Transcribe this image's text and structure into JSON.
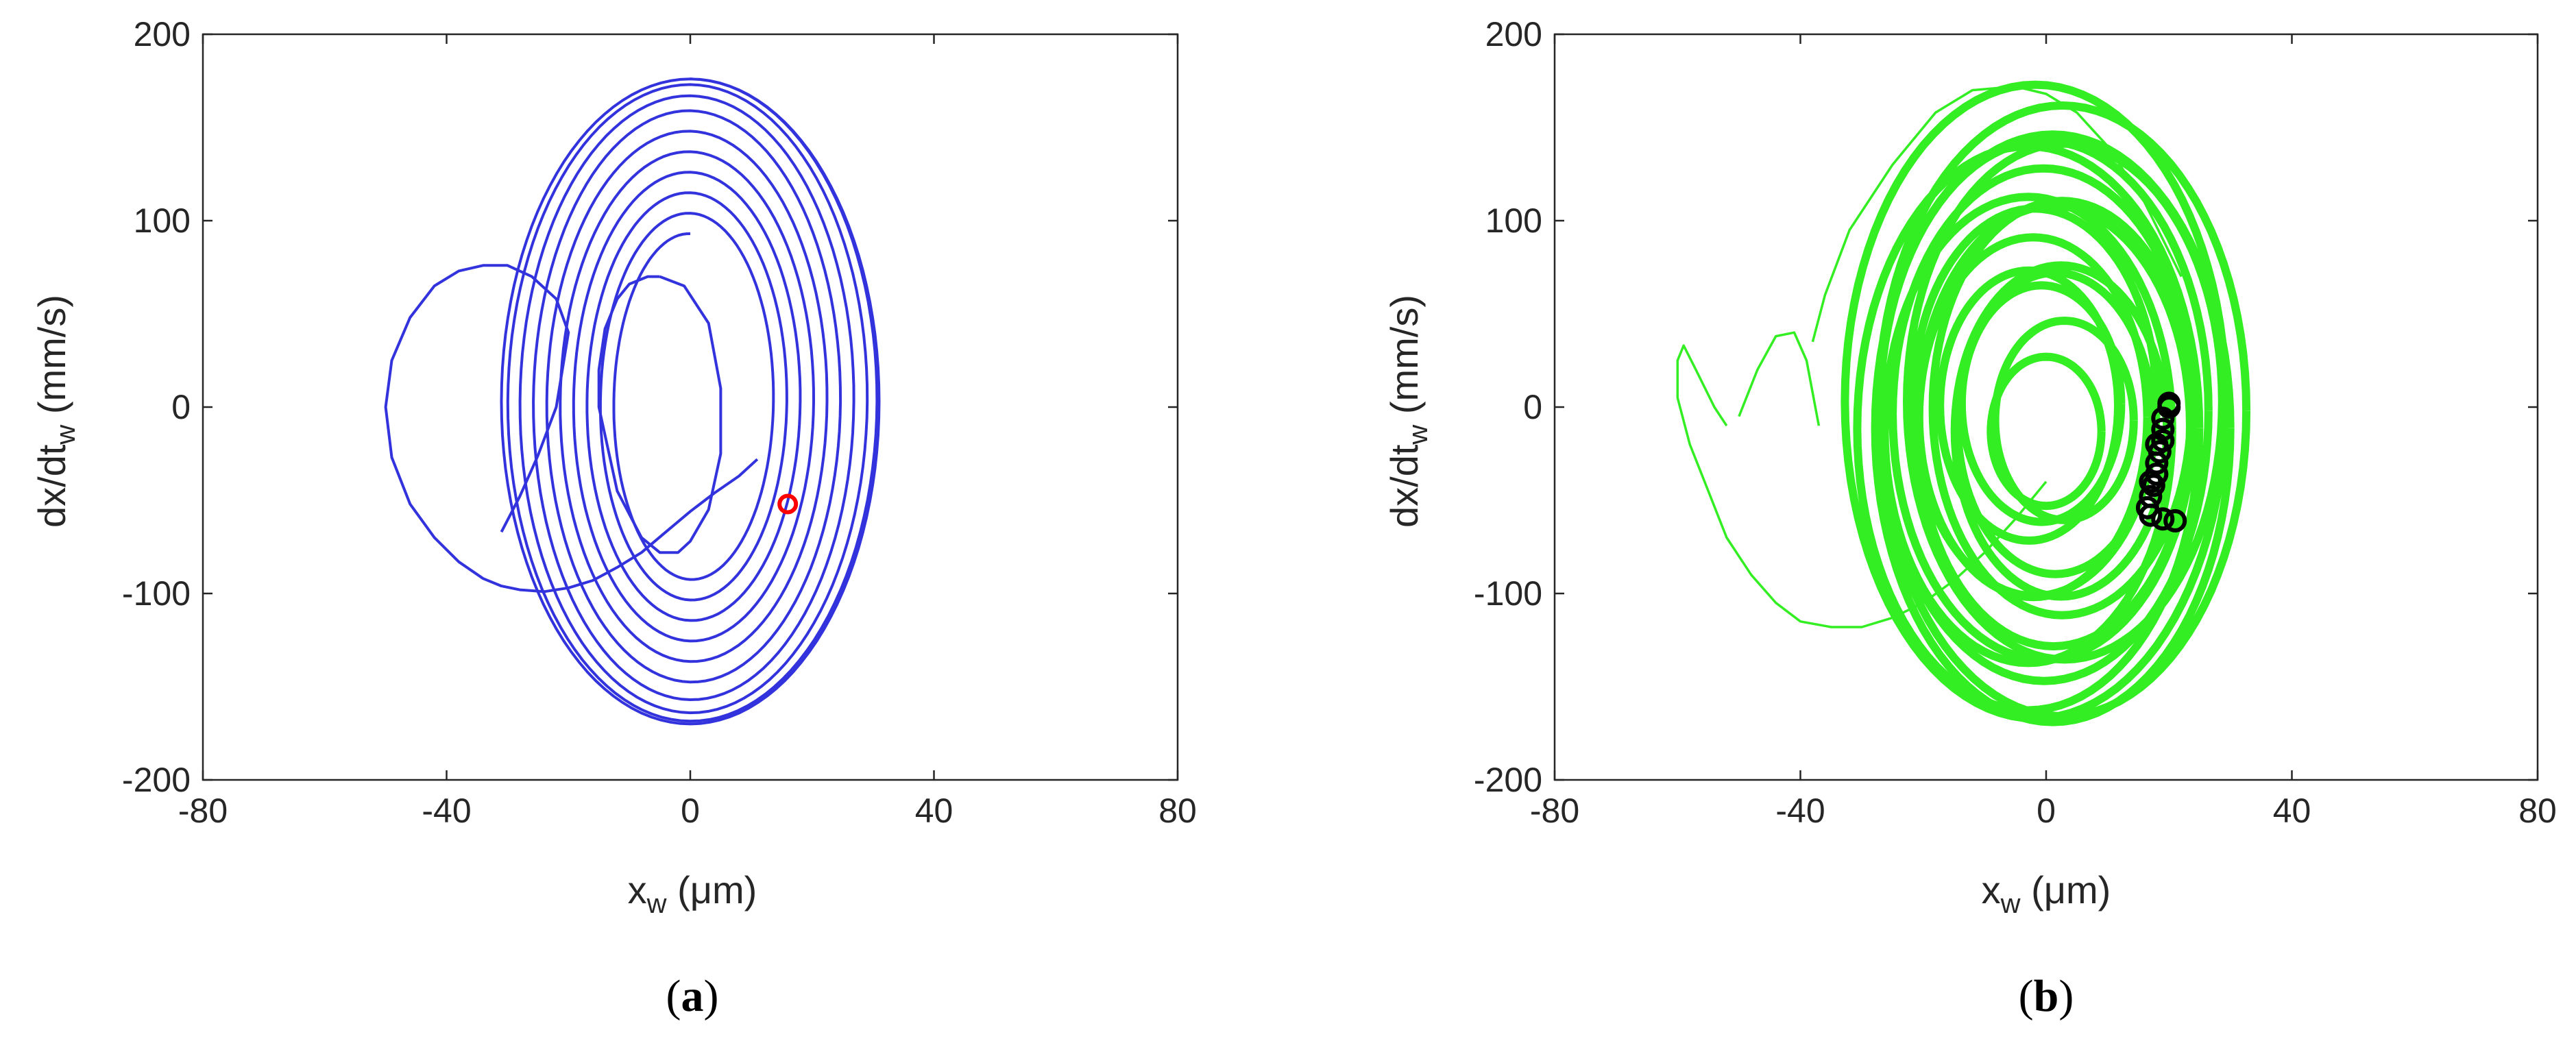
{
  "chart_data": [
    {
      "panel": "(a)",
      "type": "line",
      "title": "",
      "xlabel": {
        "base": "x",
        "sub": "w",
        "unit": " (μm)"
      },
      "ylabel": {
        "base": "dx/dt",
        "sub": "w",
        "unit": " (mm/s)"
      },
      "xlim": [
        -80,
        80
      ],
      "ylim": [
        -200,
        200
      ],
      "xticks": [
        -80,
        -40,
        0,
        40,
        80
      ],
      "yticks": [
        -200,
        -100,
        0,
        100,
        200
      ],
      "grid": false,
      "legend": "none",
      "colors": {
        "trajectory": "#3333dd",
        "marker": "#ff0000"
      },
      "series": [
        {
          "kind": "transient",
          "x": [
            -31,
            -28,
            -25,
            -22,
            -20,
            -22,
            -26,
            -30,
            -34,
            -38,
            -42,
            -46,
            -49,
            -50,
            -49,
            -46,
            -42,
            -38,
            -34,
            -31,
            -28,
            -24,
            -20,
            -16,
            -12,
            -8,
            -4,
            0,
            4,
            8,
            11
          ],
          "y": [
            -67,
            -48,
            -26,
            0,
            40,
            58,
            70,
            76,
            76,
            73,
            65,
            48,
            25,
            0,
            -27,
            -52,
            -70,
            -83,
            -92,
            -96,
            -98,
            -99,
            -97,
            -93,
            -86,
            -78,
            -67,
            -56,
            -46,
            -37,
            -28
          ]
        },
        {
          "kind": "inner-loop",
          "x": [
            -5,
            -1,
            3,
            5,
            5,
            3,
            0,
            -2,
            -5,
            -8,
            -12,
            -15,
            -15,
            -14,
            -12,
            -10,
            -7,
            -5
          ],
          "y": [
            70,
            65,
            45,
            10,
            -25,
            -55,
            -72,
            -78,
            -78,
            -70,
            -45,
            0,
            20,
            42,
            58,
            66,
            70,
            70
          ]
        },
        {
          "kind": "nested-spiral",
          "center": [
            0,
            3
          ],
          "loops": [
            {
              "rx": 12,
              "ry": 90
            },
            {
              "rx": 14.2,
              "ry": 101
            },
            {
              "rx": 16.4,
              "ry": 112
            },
            {
              "rx": 18.6,
              "ry": 123
            },
            {
              "rx": 20.8,
              "ry": 134
            },
            {
              "rx": 23,
              "ry": 145
            },
            {
              "rx": 25.2,
              "ry": 156
            },
            {
              "rx": 27.4,
              "ry": 164
            },
            {
              "rx": 29.6,
              "ry": 170
            },
            {
              "rx": 31,
              "ry": 173
            }
          ]
        }
      ],
      "markers": [
        {
          "x": 16,
          "y": -52,
          "color": "#ff0000",
          "shape": "circle"
        }
      ]
    },
    {
      "panel": "(b)",
      "type": "line",
      "title": "",
      "xlabel": {
        "base": "x",
        "sub": "w",
        "unit": " (μm)"
      },
      "ylabel": {
        "base": "dx/dt",
        "sub": "w",
        "unit": " (mm/s)"
      },
      "xlim": [
        -80,
        80
      ],
      "ylim": [
        -200,
        200
      ],
      "xticks": [
        -80,
        -40,
        0,
        40,
        80
      ],
      "yticks": [
        -200,
        -100,
        0,
        100,
        200
      ],
      "grid": false,
      "legend": "none",
      "colors": {
        "trajectory": "#33ee22",
        "marker": "#000000"
      },
      "series": [
        {
          "kind": "outer-transient",
          "x": [
            -52,
            -54,
            -57,
            -59,
            -60,
            -60,
            -58,
            -55,
            -52,
            -48,
            -44,
            -40,
            -35,
            -30,
            -25,
            -20,
            -15,
            -10,
            -5,
            0
          ],
          "y": [
            -10,
            0,
            20,
            33,
            25,
            5,
            -20,
            -45,
            -70,
            -90,
            -105,
            -115,
            -118,
            -118,
            -113,
            -105,
            -93,
            -78,
            -60,
            -40
          ]
        },
        {
          "kind": "upper-loop",
          "x": [
            -38,
            -36,
            -32,
            -25,
            -18,
            -12,
            -5,
            0,
            5,
            10,
            16,
            22
          ],
          "y": [
            35,
            60,
            95,
            130,
            158,
            170,
            172,
            168,
            158,
            140,
            110,
            70
          ]
        },
        {
          "kind": "dense-band",
          "center": [
            0,
            0
          ],
          "rx_range": [
            9,
            31
          ],
          "ry_range": [
            40,
            170
          ],
          "turns": 18
        },
        {
          "kind": "left-tail",
          "x": [
            -50,
            -47,
            -44,
            -41,
            -39,
            -37
          ],
          "y": [
            -5,
            20,
            38,
            40,
            25,
            -10
          ]
        }
      ],
      "markers": [
        {
          "x": 20,
          "y": 0
        },
        {
          "x": 19,
          "y": -6
        },
        {
          "x": 19,
          "y": -12
        },
        {
          "x": 19,
          "y": -18
        },
        {
          "x": 18.5,
          "y": -24
        },
        {
          "x": 18,
          "y": -30
        },
        {
          "x": 18,
          "y": -36
        },
        {
          "x": 17.5,
          "y": -42
        },
        {
          "x": 17,
          "y": -48
        },
        {
          "x": 16.5,
          "y": -54
        },
        {
          "x": 17,
          "y": -58
        },
        {
          "x": 19,
          "y": -60
        },
        {
          "x": 21,
          "y": -61
        },
        {
          "x": 20,
          "y": 2
        },
        {
          "x": 18,
          "y": -20
        },
        {
          "x": 17,
          "y": -40
        }
      ]
    }
  ]
}
